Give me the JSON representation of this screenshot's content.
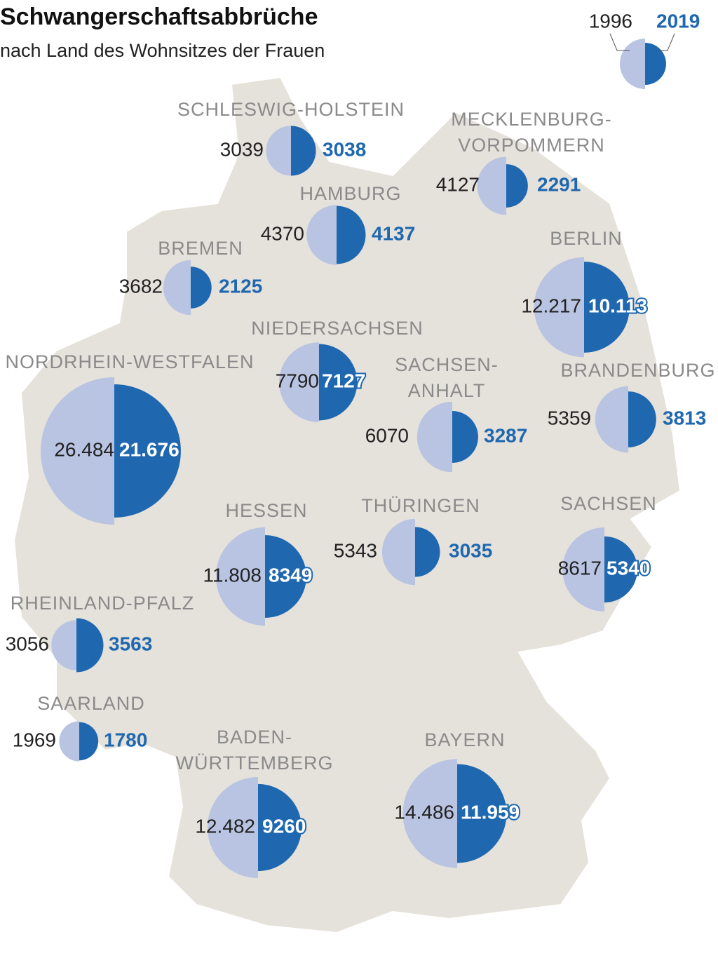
{
  "title": "Schwangerschaftsabbrüche",
  "subtitle": "nach Land des Wohnsitzes der Frauen",
  "legend": [
    "1996",
    "2019"
  ],
  "regions": [
    {
      "name": [
        "SCHLESWIG-HOLSTEIN"
      ],
      "values": [
        3039,
        3038
      ]
    },
    {
      "name": [
        "MECKLENBURG-",
        "VORPOMMERN"
      ],
      "values": [
        4127,
        2291
      ]
    },
    {
      "name": [
        "HAMBURG"
      ],
      "values": [
        4370,
        4137
      ]
    },
    {
      "name": [
        "BREMEN"
      ],
      "values": [
        3682,
        2125
      ]
    },
    {
      "name": [
        "BERLIN"
      ],
      "values": [
        12217,
        10113
      ],
      "value_labels": [
        "12.217",
        "10.113"
      ]
    },
    {
      "name": [
        "NIEDERSACHSEN"
      ],
      "values": [
        7790,
        7127
      ]
    },
    {
      "name": [
        "NORDRHEIN-WESTFALEN"
      ],
      "values": [
        26484,
        21676
      ],
      "value_labels": [
        "26.484",
        "21.676"
      ]
    },
    {
      "name": [
        "SACHSEN-",
        "ANHALT"
      ],
      "values": [
        6070,
        3287
      ]
    },
    {
      "name": [
        "BRANDENBURG"
      ],
      "values": [
        5359,
        3813
      ]
    },
    {
      "name": [
        "HESSEN"
      ],
      "values": [
        11808,
        8349
      ],
      "value_labels": [
        "11.808",
        null
      ]
    },
    {
      "name": [
        "THÜRINGEN"
      ],
      "values": [
        5343,
        3035
      ]
    },
    {
      "name": [
        "SACHSEN"
      ],
      "values": [
        8617,
        5340
      ]
    },
    {
      "name": [
        "RHEINLAND-PFALZ"
      ],
      "values": [
        3056,
        3563
      ]
    },
    {
      "name": [
        "SAARLAND"
      ],
      "values": [
        1969,
        1780
      ]
    },
    {
      "name": [
        "BADEN-",
        "WÜRTTEMBERG"
      ],
      "values": [
        12482,
        9260
      ],
      "value_labels": [
        "12.482",
        null
      ]
    },
    {
      "name": [
        "BAYERN"
      ],
      "values": [
        14486,
        11959
      ],
      "value_labels": [
        "14.486",
        "11.959"
      ]
    }
  ]
}
